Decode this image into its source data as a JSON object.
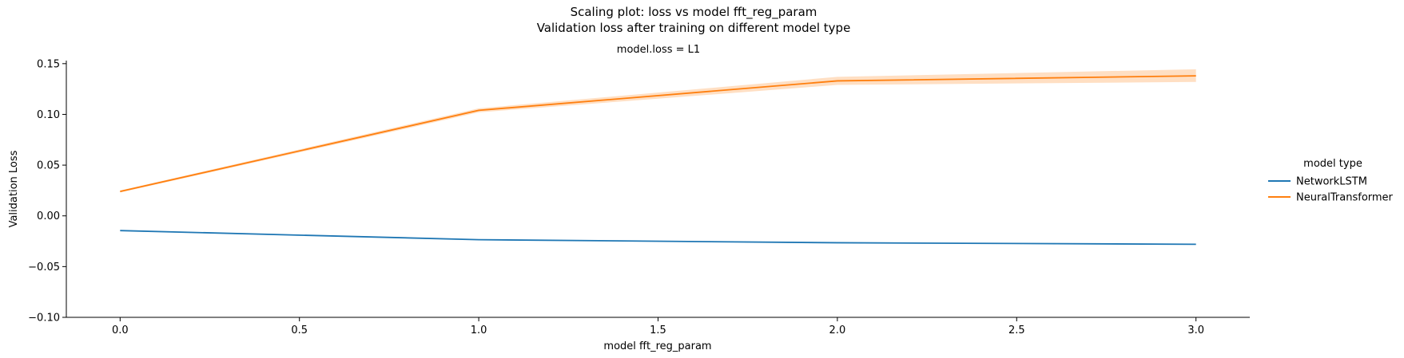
{
  "chart_data": {
    "type": "line",
    "title_lines": [
      "Scaling plot: loss vs model fft_reg_param",
      "Validation loss after training on different model type"
    ],
    "facet_label": "model.loss = L1",
    "xlabel": "model fft_reg_param",
    "ylabel": "Validation Loss",
    "xlim": [
      -0.15,
      3.15
    ],
    "ylim": [
      -0.1,
      0.153
    ],
    "xticks": [
      0.0,
      0.5,
      1.0,
      1.5,
      2.0,
      2.5,
      3.0
    ],
    "xtick_labels": [
      "0.0",
      "0.5",
      "1.0",
      "1.5",
      "2.0",
      "2.5",
      "3.0"
    ],
    "yticks": [
      -0.1,
      -0.05,
      0.0,
      0.05,
      0.1,
      0.15
    ],
    "ytick_labels": [
      "−0.10",
      "−0.05",
      "0.00",
      "0.05",
      "0.10",
      "0.15"
    ],
    "legend_title": "model type",
    "legend_position": "right",
    "grid": false,
    "series": [
      {
        "name": "NetworkLSTM",
        "color": "#1f77b4",
        "x": [
          0,
          1,
          2,
          3
        ],
        "y": [
          -0.0145,
          -0.0235,
          -0.0265,
          -0.028
        ],
        "ci_low": [
          -0.0147,
          -0.0237,
          -0.0267,
          -0.0282
        ],
        "ci_high": [
          -0.0143,
          -0.0233,
          -0.0263,
          -0.0278
        ]
      },
      {
        "name": "NeuralTransformer",
        "color": "#ff7f0e",
        "x": [
          0,
          1,
          2,
          3
        ],
        "y": [
          0.024,
          0.104,
          0.133,
          0.138
        ],
        "ci_low": [
          0.023,
          0.102,
          0.129,
          0.132
        ],
        "ci_high": [
          0.025,
          0.106,
          0.137,
          0.1445
        ]
      }
    ]
  }
}
